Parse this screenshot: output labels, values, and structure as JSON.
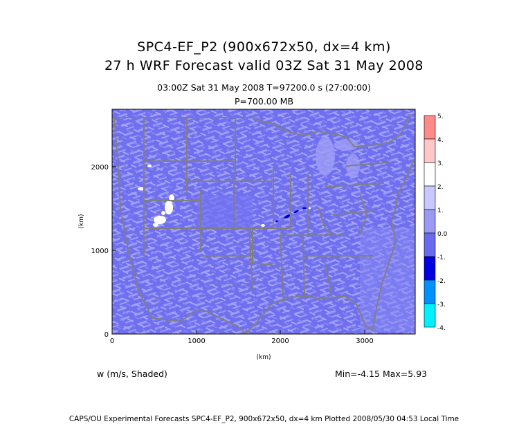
{
  "titles": {
    "line1": "SPC4-EF_P2 (900x672x50, dx=4 km)",
    "line2": "27 h WRF Forecast valid 03Z Sat 31 May 2008",
    "line3": "03:00Z Sat 31 May 2008    T=97200.0 s (27:00:00)",
    "line4": "P=700.00 MB"
  },
  "axes": {
    "x_label": "(km)",
    "y_label": "(km)",
    "x_ticks": [
      "0",
      "1000",
      "2000",
      "3000"
    ],
    "y_ticks": [
      "0",
      "1000",
      "2000"
    ]
  },
  "colorbar": {
    "labels": [
      "5.",
      "4.",
      "3.",
      "2.",
      "1.",
      "0.0",
      "-1.",
      "-2.",
      "-3.",
      "-4."
    ],
    "colors": [
      "#ff8a8a",
      "#ffc8c8",
      "#ffffff",
      "#c8c8ff",
      "#9a9af5",
      "#6a6af0",
      "#0000e0",
      "#0090ff",
      "#00f0ff"
    ]
  },
  "variable_label": "w (m/s, Shaded)",
  "min_max": "Min=-4.15 Max=5.93",
  "footer": "CAPS/OU Experimental Forecasts  SPC4-EF_P2, 900x672x50, dx=4 km  Plotted 2008/05/30 04:53 Local Time",
  "colors": {
    "map_background": "#6f6ff0",
    "map_light": "#9d9df6",
    "boundaries": "#808080"
  }
}
